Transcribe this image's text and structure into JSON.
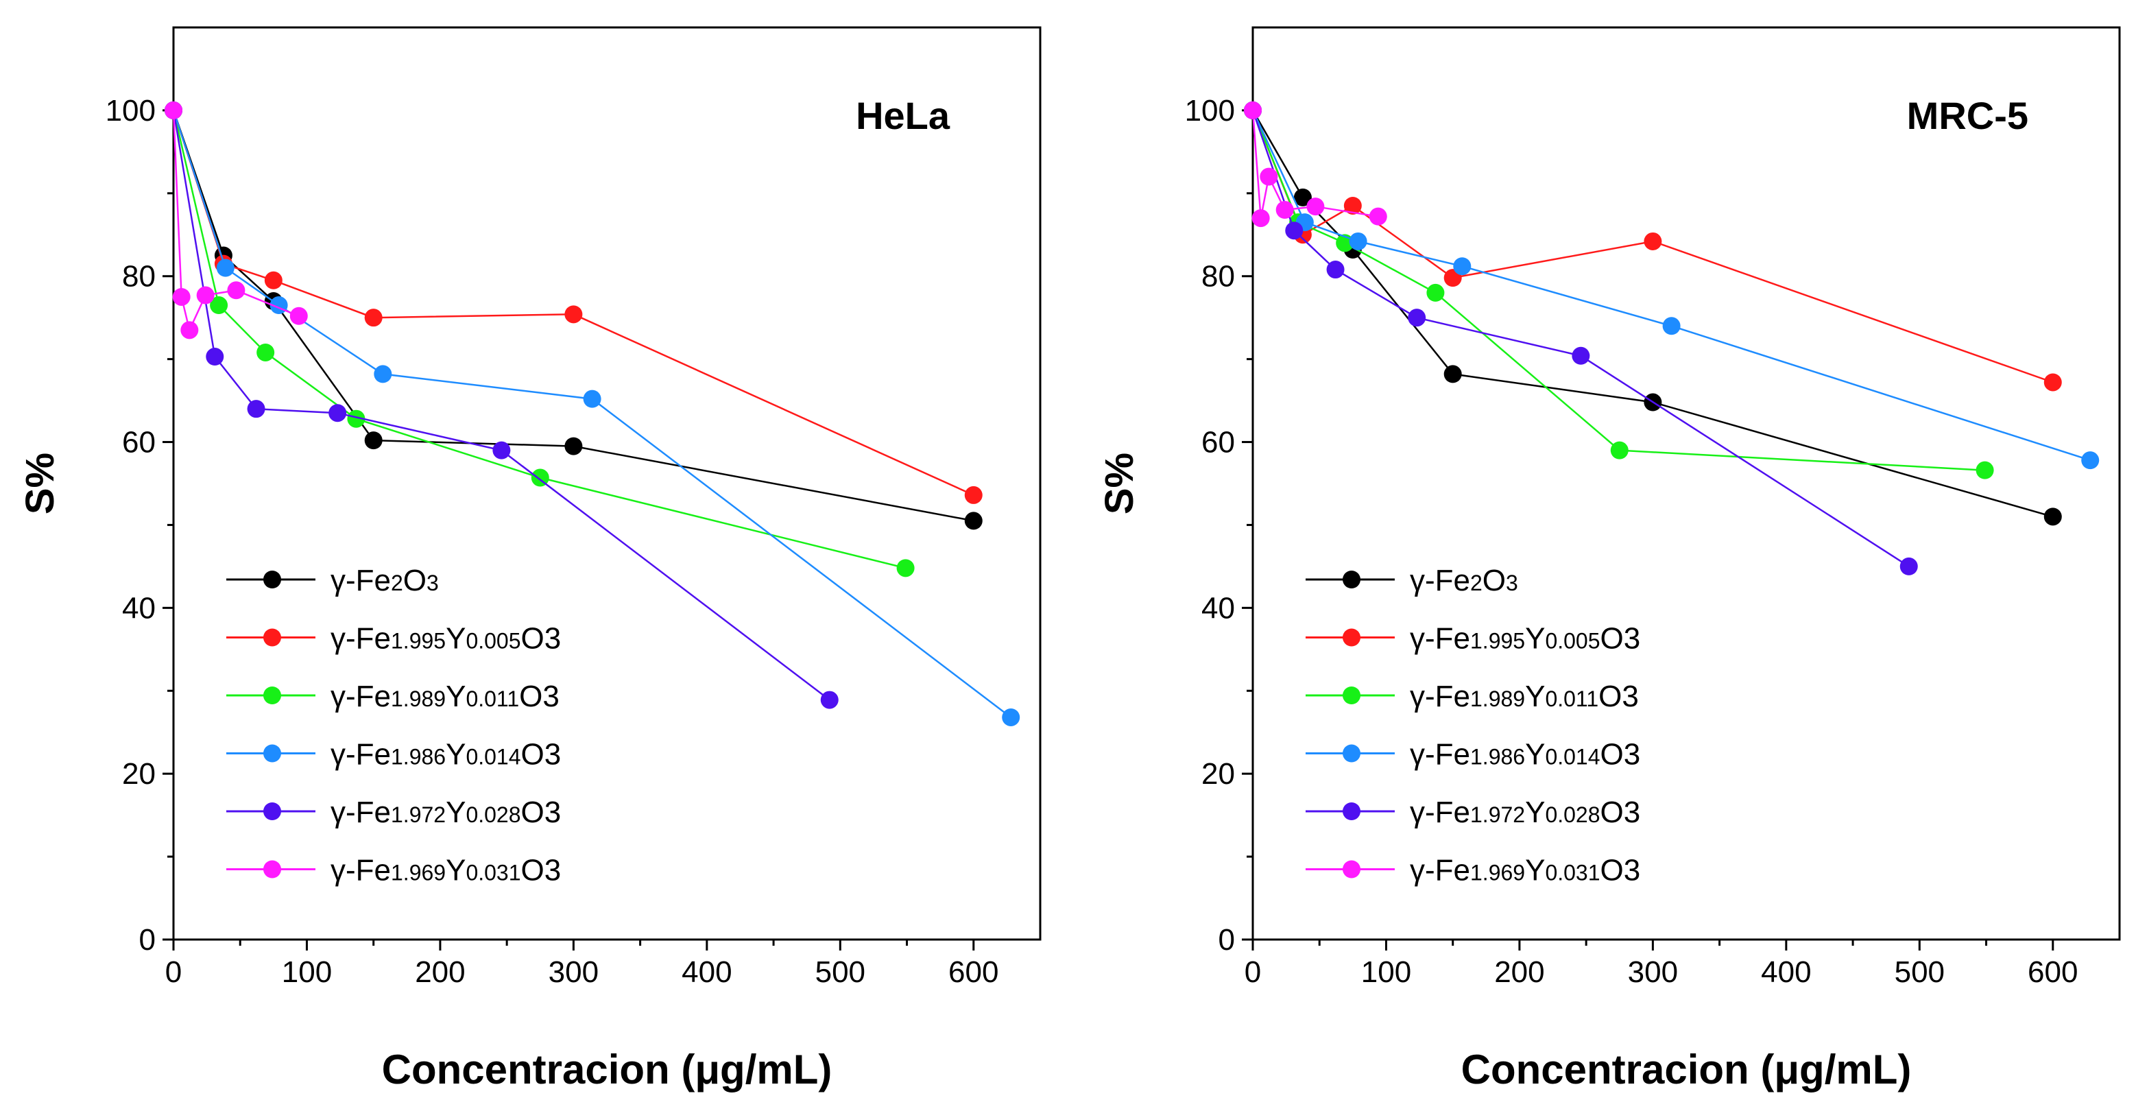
{
  "colors": {
    "black": "#000000",
    "red": "#ff1a1a",
    "green": "#17f017",
    "blue": "#1e8cff",
    "violet": "#4f10f0",
    "magenta": "#ff1aff"
  },
  "legend_labels": [
    [
      "γ-Fe",
      "2",
      "O",
      "3",
      ""
    ],
    [
      "γ-Fe",
      "1.995",
      "Y",
      "0.005",
      "O3"
    ],
    [
      "γ-Fe",
      "1.989",
      "Y",
      "0.011",
      "O3"
    ],
    [
      "γ-Fe",
      "1.986",
      "Y",
      "0.014",
      "O3"
    ],
    [
      "γ-Fe",
      "1.972",
      "Y",
      "0.028",
      "O3"
    ],
    [
      "γ-Fe",
      "1.969",
      "Y",
      "0.031",
      "O3"
    ]
  ],
  "chart_data": [
    {
      "type": "line",
      "title": "HeLa",
      "xlabel": "Concentracion (μg/mL)",
      "ylabel": "S%",
      "xlim": [
        0,
        650
      ],
      "ylim": [
        0,
        110
      ],
      "xticks": [
        0,
        100,
        200,
        300,
        400,
        500,
        600
      ],
      "yticks": [
        0,
        20,
        40,
        60,
        80,
        100
      ],
      "legend_position": "bottom-left",
      "series": [
        {
          "name": "γ-Fe2O3",
          "color": "black",
          "x": [
            0,
            37.5,
            75,
            150,
            300,
            600
          ],
          "y": [
            100,
            82.5,
            77,
            60.2,
            59.5,
            50.5
          ]
        },
        {
          "name": "γ-Fe1.995Y0.005O3",
          "color": "red",
          "x": [
            0,
            37.5,
            75,
            150,
            300,
            600
          ],
          "y": [
            100,
            81.5,
            79.5,
            75,
            75.4,
            53.6
          ]
        },
        {
          "name": "γ-Fe1.989Y0.011O3",
          "color": "green",
          "x": [
            0,
            34,
            69,
            137,
            275,
            549
          ],
          "y": [
            100,
            76.5,
            70.8,
            62.8,
            55.7,
            44.8
          ]
        },
        {
          "name": "γ-Fe1.986Y0.014O3",
          "color": "blue",
          "x": [
            0,
            39,
            79,
            157,
            314,
            628
          ],
          "y": [
            100,
            81,
            76.5,
            68.2,
            65.2,
            26.8
          ]
        },
        {
          "name": "γ-Fe1.972Y0.028O3",
          "color": "violet",
          "x": [
            0,
            31,
            62,
            123,
            246,
            492
          ],
          "y": [
            100,
            70.3,
            64,
            63.5,
            59,
            28.9
          ]
        },
        {
          "name": "γ-Fe1.969Y0.031O3",
          "color": "magenta",
          "x": [
            0,
            6,
            12,
            24,
            47,
            94
          ],
          "y": [
            100,
            77.5,
            73.5,
            77.7,
            78.3,
            75.2
          ]
        }
      ]
    },
    {
      "type": "line",
      "title": "MRC-5",
      "xlabel": "Concentracion (μg/mL)",
      "ylabel": "S%",
      "xlim": [
        0,
        650
      ],
      "ylim": [
        0,
        110
      ],
      "xticks": [
        0,
        100,
        200,
        300,
        400,
        500,
        600
      ],
      "yticks": [
        0,
        20,
        40,
        60,
        80,
        100
      ],
      "legend_position": "bottom-left",
      "series": [
        {
          "name": "γ-Fe2O3",
          "color": "black",
          "x": [
            0,
            37.5,
            75,
            150,
            300,
            600
          ],
          "y": [
            100,
            89.5,
            83.2,
            68.2,
            64.8,
            51
          ]
        },
        {
          "name": "γ-Fe1.995Y0.005O3",
          "color": "red",
          "x": [
            0,
            37.5,
            75,
            150,
            300,
            600
          ],
          "y": [
            100,
            85,
            88.5,
            79.8,
            84.2,
            67.2
          ]
        },
        {
          "name": "γ-Fe1.989Y0.011O3",
          "color": "green",
          "x": [
            0,
            34,
            69,
            137,
            275,
            549
          ],
          "y": [
            100,
            86.5,
            84,
            78,
            59,
            56.6
          ]
        },
        {
          "name": "γ-Fe1.986Y0.014O3",
          "color": "blue",
          "x": [
            0,
            39,
            79,
            157,
            314,
            628
          ],
          "y": [
            100,
            86.5,
            84.2,
            81.2,
            74,
            57.8
          ]
        },
        {
          "name": "γ-Fe1.972Y0.028O3",
          "color": "violet",
          "x": [
            0,
            31,
            62,
            123,
            246,
            492
          ],
          "y": [
            100,
            85.5,
            80.8,
            75,
            70.4,
            45
          ]
        },
        {
          "name": "γ-Fe1.969Y0.031O3",
          "color": "magenta",
          "x": [
            0,
            6,
            12,
            24,
            47,
            94
          ],
          "y": [
            100,
            87,
            92,
            88,
            88.4,
            87.2
          ]
        }
      ]
    }
  ]
}
